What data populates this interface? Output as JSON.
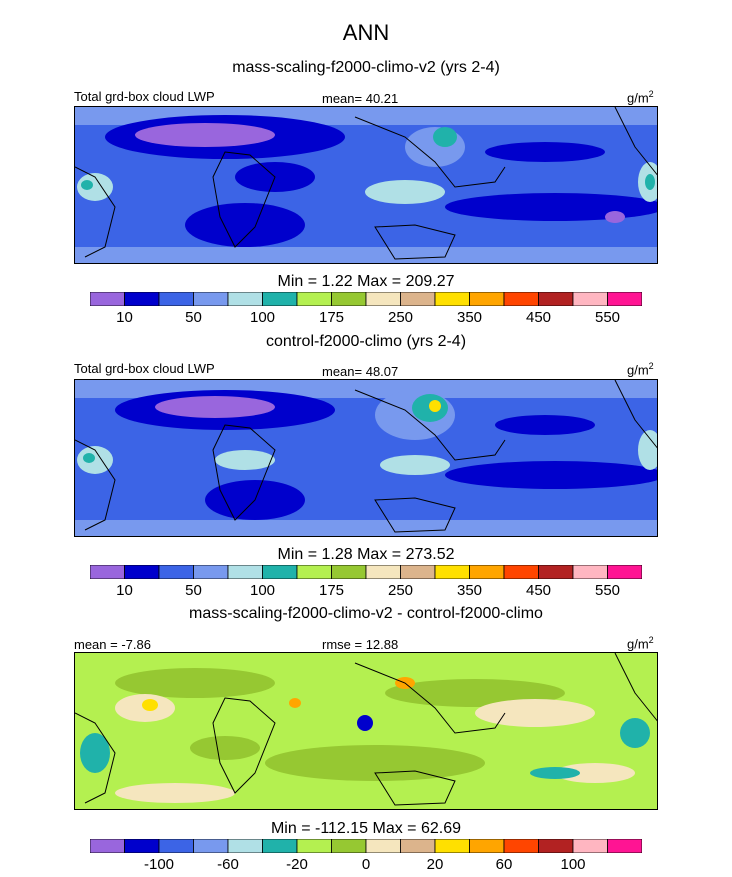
{
  "title": "ANN",
  "panels": [
    {
      "subtitle": "mass-scaling-f2000-climo-v2 (yrs 2-4)",
      "left_label": "Total grd-box cloud LWP",
      "center_label": "mean=  40.21",
      "units_base": "g/m",
      "units_exp": "2",
      "minmax": "Min =   1.22 Max = 209.27",
      "colorbar": "abs"
    },
    {
      "subtitle": "control-f2000-climo (yrs 2-4)",
      "left_label": "Total grd-box cloud LWP",
      "center_label": "mean=  48.07",
      "units_base": "g/m",
      "units_exp": "2",
      "minmax": "Min =   1.28 Max = 273.52",
      "colorbar": "abs"
    },
    {
      "subtitle": "mass-scaling-f2000-climo-v2 - control-f2000-climo",
      "left_label": "mean =  -7.86",
      "center_label": "rmse =  12.88",
      "units_base": "g/m",
      "units_exp": "2",
      "minmax": "Min = -112.15 Max =  62.69",
      "colorbar": "diff"
    }
  ],
  "chart_data": {
    "type": "heatmap",
    "colorbars": {
      "abs": {
        "colors": [
          "#9966dd",
          "#0000cc",
          "#3c64e6",
          "#7899ee",
          "#b0e0e6",
          "#20b2aa",
          "#b4f050",
          "#96c832",
          "#f5e6be",
          "#dcb48c",
          "#ffe000",
          "#ffa500",
          "#ff4500",
          "#b22222",
          "#ffb6c1",
          "#ff1493"
        ],
        "tick_labels": [
          "10",
          "50",
          "100",
          "175",
          "250",
          "350",
          "450",
          "550"
        ],
        "tick_positions": [
          1,
          3,
          5,
          7,
          9,
          11,
          13,
          15
        ]
      },
      "diff": {
        "colors": [
          "#9966dd",
          "#0000cc",
          "#3c64e6",
          "#7899ee",
          "#b0e0e6",
          "#20b2aa",
          "#b4f050",
          "#96c832",
          "#f5e6be",
          "#dcb48c",
          "#ffe000",
          "#ffa500",
          "#ff4500",
          "#b22222",
          "#ffb6c1",
          "#ff1493"
        ],
        "tick_labels": [
          "-100",
          "-60",
          "-20",
          "0",
          "20",
          "60",
          "100"
        ],
        "tick_positions": [
          2,
          4,
          6,
          8,
          10,
          12,
          14
        ]
      }
    }
  }
}
